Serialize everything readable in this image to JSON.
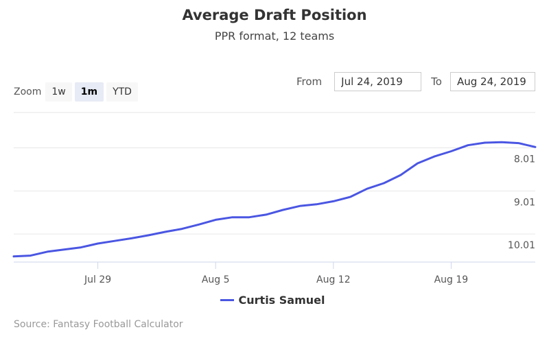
{
  "chart_data": {
    "type": "line",
    "title": "Average Draft Position",
    "subtitle": "PPR format, 12 teams",
    "x": [
      "2019-07-24",
      "2019-07-25",
      "2019-07-26",
      "2019-07-27",
      "2019-07-28",
      "2019-07-29",
      "2019-07-30",
      "2019-07-31",
      "2019-08-01",
      "2019-08-02",
      "2019-08-03",
      "2019-08-04",
      "2019-08-05",
      "2019-08-06",
      "2019-08-07",
      "2019-08-08",
      "2019-08-09",
      "2019-08-10",
      "2019-08-11",
      "2019-08-12",
      "2019-08-13",
      "2019-08-14",
      "2019-08-15",
      "2019-08-16",
      "2019-08-17",
      "2019-08-18",
      "2019-08-19",
      "2019-08-20",
      "2019-08-21",
      "2019-08-22",
      "2019-08-23",
      "2019-08-24"
    ],
    "series": [
      {
        "name": "Curtis Samuel",
        "color": "#4a56e2",
        "values": [
          10.53,
          10.51,
          10.42,
          10.37,
          10.32,
          10.23,
          10.17,
          10.11,
          10.04,
          9.96,
          9.89,
          9.79,
          9.68,
          9.62,
          9.62,
          9.56,
          9.45,
          9.36,
          9.32,
          9.25,
          9.15,
          8.96,
          8.83,
          8.64,
          8.37,
          8.21,
          8.09,
          7.95,
          7.89,
          7.88,
          7.9,
          7.99
        ]
      }
    ],
    "y_ticks": [
      "8.01",
      "9.01",
      "10.01"
    ],
    "y_tick_values": [
      8.01,
      9.01,
      10.01
    ],
    "ylim": [
      10.66,
      7.19
    ],
    "y_reversed": true,
    "x_ticks": [
      "Jul 29",
      "Aug 5",
      "Aug 12",
      "Aug 19"
    ],
    "x_tick_dates": [
      "2019-07-29",
      "2019-08-05",
      "2019-08-12",
      "2019-08-19"
    ],
    "grid": true,
    "legend_position": "bottom"
  },
  "zoom": {
    "label": "Zoom",
    "buttons": [
      "1w",
      "1m",
      "YTD"
    ],
    "active": "1m"
  },
  "range": {
    "from_label": "From",
    "from_value": "Jul 24, 2019",
    "to_label": "To",
    "to_value": "Aug 24, 2019"
  },
  "source": "Source: Fantasy Football Calculator"
}
